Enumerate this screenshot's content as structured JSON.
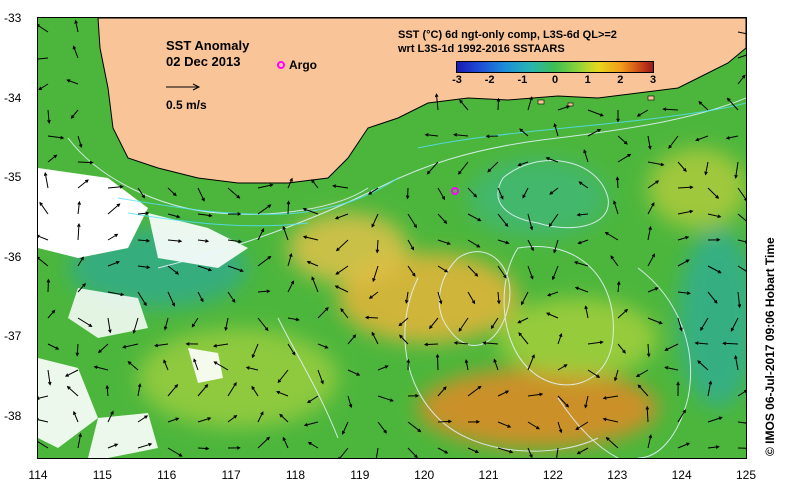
{
  "map": {
    "title_line1": "SST Anomaly",
    "title_line2": "02 Dec 2013",
    "argo_label": "Argo",
    "scale_label": "0.5 m/s",
    "colorbar_title_line1": "SST (°C) 6d ngt-only comp, L3S-6d QL>=2",
    "colorbar_title_line2": "wrt L3S-1d 1992-2016 SSTAARS",
    "colorbar_ticks": [
      "-3",
      "-2",
      "-1",
      "0",
      "1",
      "2",
      "3"
    ],
    "side_label": "© IMOS 06-Jul-2017 09:06 Hobart Time",
    "x_ticks": [
      "114",
      "115",
      "116",
      "117",
      "118",
      "119",
      "120",
      "121",
      "122",
      "123",
      "124",
      "125"
    ],
    "y_ticks": [
      "-33",
      "-34",
      "-35",
      "-36",
      "-37",
      "-38"
    ],
    "land_color": "#f9c598",
    "argo_color": "#ff00ff"
  }
}
